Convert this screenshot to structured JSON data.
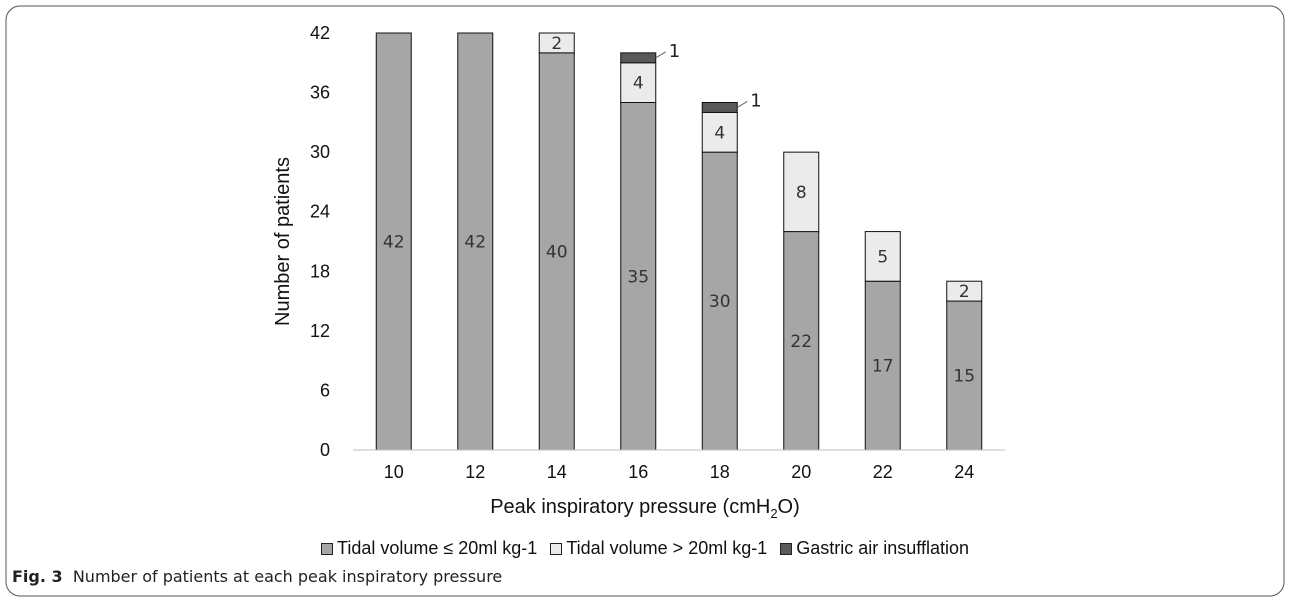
{
  "caption": {
    "prefix": "Fig. 3",
    "text": "Number of patients at each peak inspiratory pressure"
  },
  "chart_data": {
    "type": "bar",
    "stacked": true,
    "categories": [
      "10",
      "12",
      "14",
      "16",
      "18",
      "20",
      "22",
      "24"
    ],
    "series": [
      {
        "name": "Tidal volume ≤ 20ml kg-1",
        "values": [
          42,
          42,
          40,
          35,
          30,
          22,
          17,
          15
        ],
        "color": "#a6a6a6"
      },
      {
        "name": "Tidal volume > 20ml kg-1",
        "values": [
          0,
          0,
          2,
          4,
          4,
          8,
          5,
          2
        ],
        "color": "#ebebeb"
      },
      {
        "name": "Gastric air insufflation",
        "values": [
          0,
          0,
          0,
          1,
          1,
          0,
          0,
          0
        ],
        "color": "#595959"
      }
    ],
    "data_labels": [
      [
        "42",
        "42",
        "40",
        "35",
        "30",
        "22",
        "17",
        "15"
      ],
      [
        "",
        "",
        "2",
        "4",
        "4",
        "8",
        "5",
        "2"
      ],
      [
        "",
        "",
        "",
        "1",
        "1",
        "",
        "",
        ""
      ]
    ],
    "xlabel_main": "Peak inspiratory pressure (cmH",
    "xlabel_sub": "2",
    "xlabel_end": "O)",
    "ylabel": "Number of patients",
    "ylim": [
      0,
      42
    ],
    "yticks": [
      "0",
      "6",
      "12",
      "18",
      "24",
      "30",
      "36",
      "42"
    ],
    "grid": false,
    "legend": "bottom"
  }
}
